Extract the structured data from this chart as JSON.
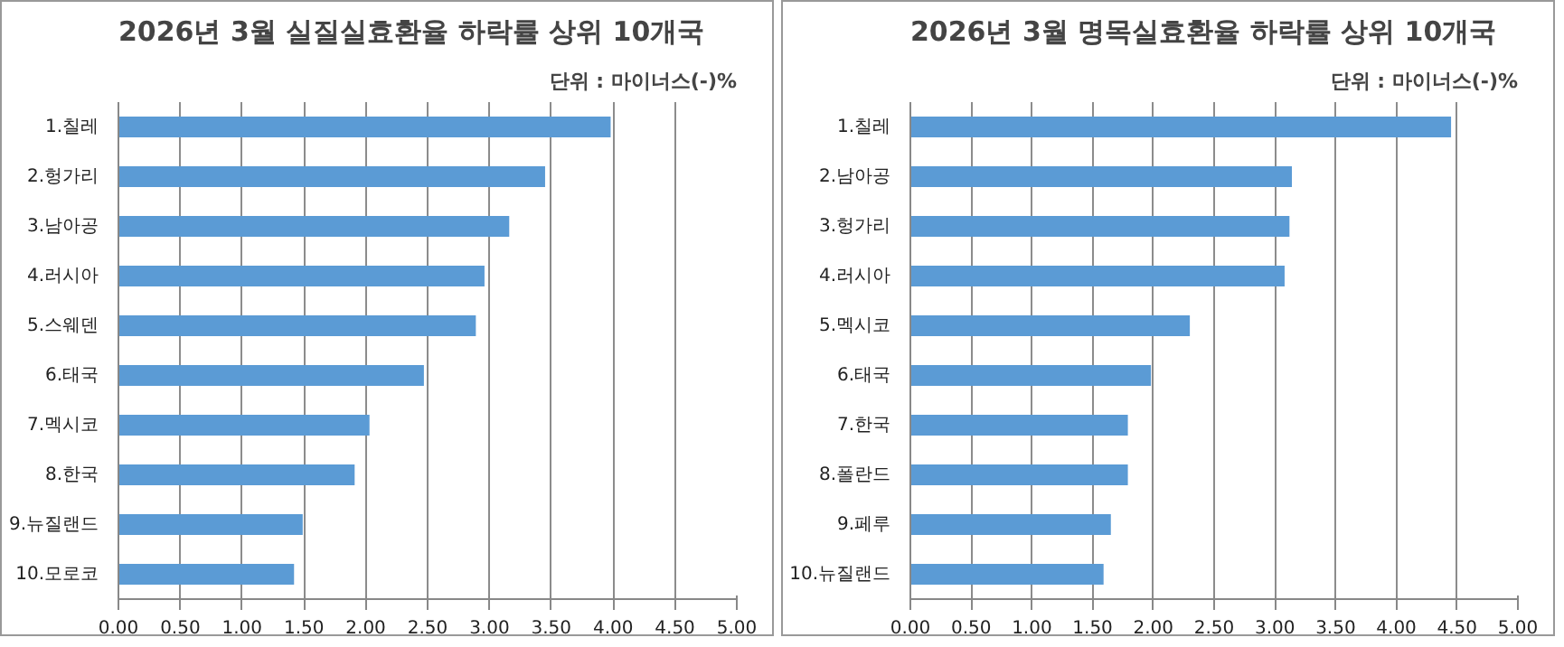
{
  "chart_data": [
    {
      "type": "bar",
      "orientation": "horizontal",
      "title": "2026년 3월 실질실효환율 하락률 상위 10개국",
      "subtitle": "단위 : 마이너스(-)%",
      "categories": [
        "1.칠레",
        "2.헝가리",
        "3.남아공",
        "4.러시아",
        "5.스웨덴",
        "6.태국",
        "7.멕시코",
        "8.한국",
        "9.뉴질랜드",
        "10.모로코"
      ],
      "values": [
        3.98,
        3.45,
        3.16,
        2.96,
        2.89,
        2.47,
        2.03,
        1.91,
        1.49,
        1.42
      ],
      "color": "#5b9bd5",
      "xlim": [
        0,
        5
      ],
      "xticks": [
        {
          "value": 0,
          "label": "0.00"
        },
        {
          "value": 0.5,
          "label": "0.50"
        },
        {
          "value": 1,
          "label": "1.00"
        },
        {
          "value": 1.5,
          "label": "1.50"
        },
        {
          "value": 2,
          "label": "2.00"
        },
        {
          "value": 2.5,
          "label": "2.50"
        },
        {
          "value": 3,
          "label": "3.00"
        },
        {
          "value": 3.5,
          "label": "3.50"
        },
        {
          "value": 4,
          "label": "4.00"
        },
        {
          "value": 4.5,
          "label": "4.50"
        },
        {
          "value": 5,
          "label": "5.00"
        }
      ],
      "grid": "x"
    },
    {
      "type": "bar",
      "orientation": "horizontal",
      "title": "2026년 3월 명목실효환율 하락률 상위 10개국",
      "subtitle": "단위 : 마이너스(-)%",
      "categories": [
        "1.칠레",
        "2.남아공",
        "3.헝가리",
        "4.러시아",
        "5.멕시코",
        "6.태국",
        "7.한국",
        "8.폴란드",
        "9.페루",
        "10.뉴질랜드"
      ],
      "values": [
        4.45,
        3.14,
        3.12,
        3.08,
        2.3,
        1.98,
        1.79,
        1.79,
        1.65,
        1.59
      ],
      "color": "#5b9bd5",
      "xlim": [
        0,
        5
      ],
      "xticks": [
        {
          "value": 0,
          "label": "0.00"
        },
        {
          "value": 0.5,
          "label": "0.50"
        },
        {
          "value": 1,
          "label": "1.00"
        },
        {
          "value": 1.5,
          "label": "1.50"
        },
        {
          "value": 2,
          "label": "2.00"
        },
        {
          "value": 2.5,
          "label": "2.50"
        },
        {
          "value": 3,
          "label": "3.00"
        },
        {
          "value": 3.5,
          "label": "3.50"
        },
        {
          "value": 4,
          "label": "4.00"
        },
        {
          "value": 4.5,
          "label": "4.50"
        },
        {
          "value": 5,
          "label": "5.00"
        }
      ],
      "grid": "x"
    }
  ]
}
